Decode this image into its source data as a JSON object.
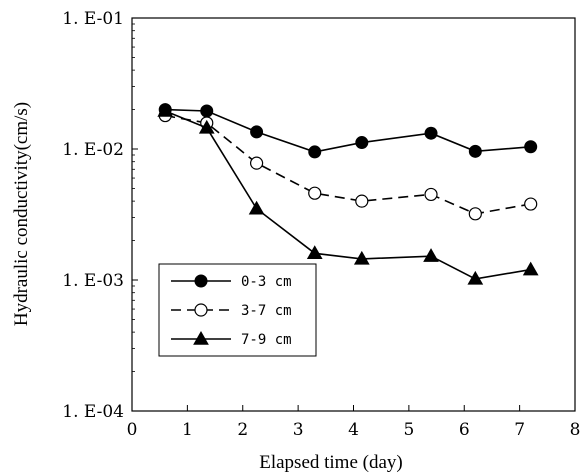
{
  "chart_data": {
    "type": "line",
    "xlabel": "Elapsed time (day)",
    "ylabel": "Hydraulic conductivity(cm/s)",
    "xlim": [
      0,
      8
    ],
    "ylim": [
      0.0001,
      0.1
    ],
    "yscale": "log",
    "x_ticks": [
      "0",
      "1",
      "2",
      "3",
      "4",
      "5",
      "6",
      "7",
      "8"
    ],
    "y_ticks": [
      {
        "value": 0.1,
        "label": "1. E-01"
      },
      {
        "value": 0.01,
        "label": "1. E-02"
      },
      {
        "value": 0.001,
        "label": "1. E-03"
      },
      {
        "value": 0.0001,
        "label": "1. E-04"
      }
    ],
    "grid": false,
    "legend_position": "lower-left",
    "series": [
      {
        "name": "0-3 cm",
        "marker": "filled-circle",
        "line": "solid",
        "x": [
          0.6,
          1.35,
          2.25,
          3.3,
          4.15,
          5.4,
          6.2,
          7.2
        ],
        "y": [
          0.02,
          0.0195,
          0.0135,
          0.0095,
          0.0112,
          0.0132,
          0.0096,
          0.0104
        ]
      },
      {
        "name": "3-7 cm",
        "marker": "open-circle",
        "line": "dashed",
        "x": [
          0.6,
          1.35,
          2.25,
          3.3,
          4.15,
          5.4,
          6.2,
          7.2
        ],
        "y": [
          0.018,
          0.0158,
          0.0078,
          0.0046,
          0.004,
          0.0045,
          0.0032,
          0.0038
        ]
      },
      {
        "name": "7-9 cm",
        "marker": "filled-triangle",
        "line": "solid",
        "x": [
          0.6,
          1.35,
          2.25,
          3.3,
          4.15,
          5.4,
          6.2,
          7.2
        ],
        "y": [
          0.0195,
          0.0145,
          0.0035,
          0.0016,
          0.00145,
          0.00152,
          0.00102,
          0.0012
        ]
      }
    ]
  }
}
